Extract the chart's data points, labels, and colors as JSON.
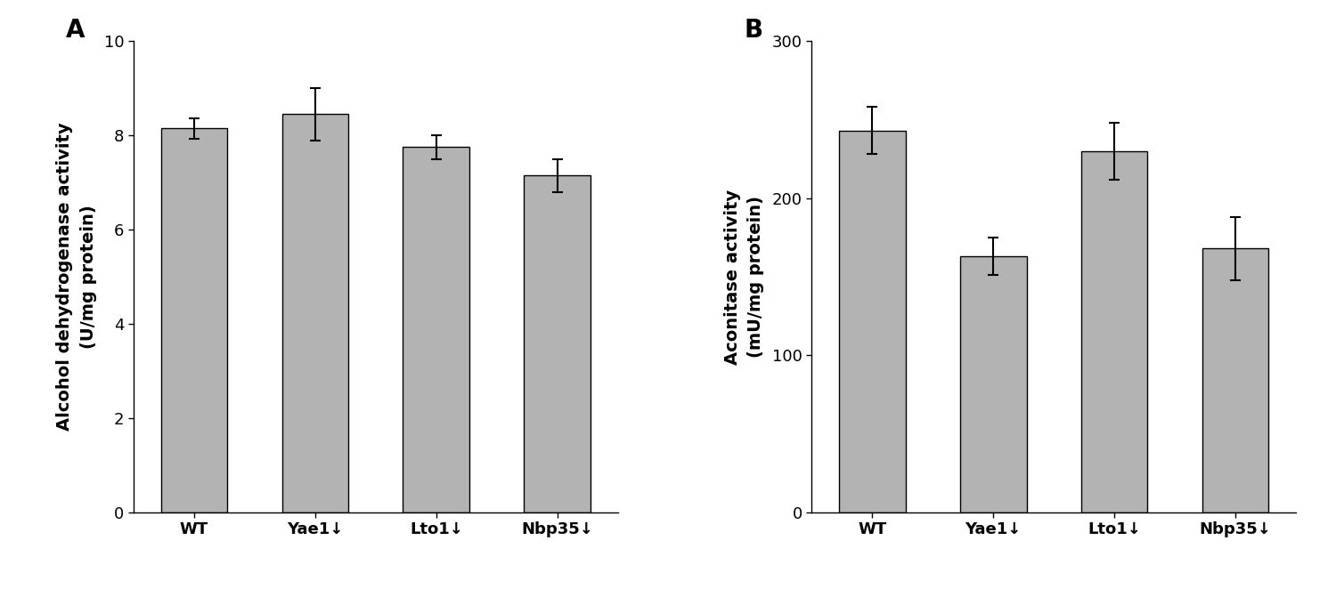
{
  "panel_A": {
    "label": "A",
    "categories": [
      "WT",
      "Yae1↓",
      "Lto1↓",
      "Nbp35↓"
    ],
    "values": [
      8.15,
      8.45,
      7.75,
      7.15
    ],
    "errors": [
      0.22,
      0.55,
      0.25,
      0.35
    ],
    "ylabel_line1": "Alcohol dehydrogenase activity",
    "ylabel_line2": "(U/mg protein)",
    "ylim": [
      0,
      10
    ],
    "yticks": [
      0,
      2,
      4,
      6,
      8,
      10
    ]
  },
  "panel_B": {
    "label": "B",
    "categories": [
      "WT",
      "Yae1↓",
      "Lto1↓",
      "Nbp35↓"
    ],
    "values": [
      243,
      163,
      230,
      168
    ],
    "errors": [
      15,
      12,
      18,
      20
    ],
    "ylabel_line1": "Aconitase activity",
    "ylabel_line2": "(mU/mg protein)",
    "ylim": [
      0,
      300
    ],
    "yticks": [
      0,
      100,
      200,
      300
    ]
  },
  "bar_color": "#b3b3b3",
  "bar_edgecolor": "#000000",
  "bar_width": 0.55,
  "capsize": 4,
  "error_linewidth": 1.5,
  "background_color": "#ffffff",
  "panel_label_fontsize": 20,
  "tick_fontsize": 13,
  "ylabel_fontsize": 14,
  "xtick_fontsize": 13
}
